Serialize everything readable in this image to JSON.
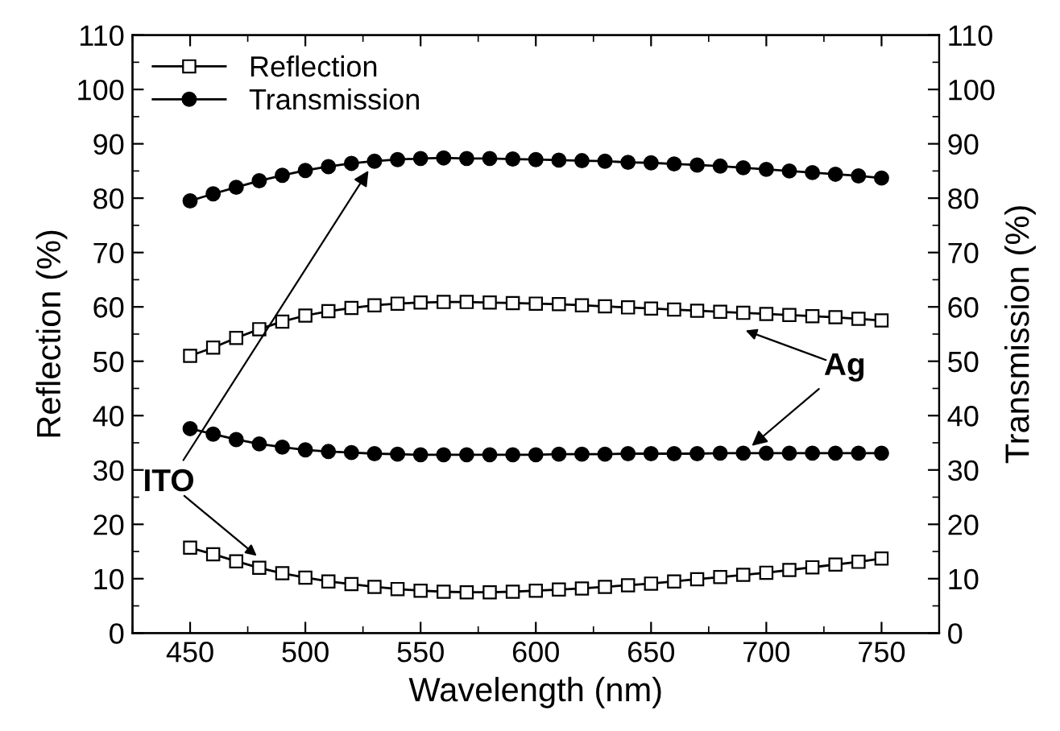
{
  "chart_data": {
    "type": "line",
    "xlabel": "Wavelength (nm)",
    "ylabel": "Reflection (%)",
    "y2label": "Transmission (%)",
    "x": [
      450,
      460,
      470,
      480,
      490,
      500,
      510,
      520,
      530,
      540,
      550,
      560,
      570,
      580,
      590,
      600,
      610,
      620,
      630,
      640,
      650,
      660,
      670,
      680,
      690,
      700,
      710,
      720,
      730,
      740,
      750
    ],
    "series": [
      {
        "name": "Reflection",
        "color": "#000000",
        "marker": "square",
        "values": [
          51,
          52.5,
          54.3,
          55.9,
          57.3,
          58.4,
          59.2,
          59.8,
          60.3,
          60.6,
          60.8,
          60.9,
          60.9,
          60.8,
          60.7,
          60.6,
          60.5,
          60.3,
          60.1,
          59.9,
          59.7,
          59.5,
          59.3,
          59.1,
          58.9,
          58.7,
          58.5,
          58.3,
          58.1,
          57.8,
          57.5
        ]
      },
      {
        "color": "#000000",
        "marker": "square",
        "values": [
          15.7,
          14.5,
          13.2,
          12.0,
          11.0,
          10.2,
          9.5,
          9.0,
          8.5,
          8.1,
          7.8,
          7.6,
          7.5,
          7.5,
          7.6,
          7.8,
          8.0,
          8.2,
          8.5,
          8.8,
          9.1,
          9.5,
          9.9,
          10.3,
          10.7,
          11.1,
          11.6,
          12.1,
          12.6,
          13.1,
          13.7
        ]
      },
      {
        "name": "Transmission",
        "color": "#000000",
        "marker": "circle",
        "values": [
          79.5,
          80.8,
          82.0,
          83.2,
          84.2,
          85.1,
          85.8,
          86.4,
          86.8,
          87.1,
          87.3,
          87.4,
          87.3,
          87.3,
          87.2,
          87.1,
          87.0,
          86.9,
          86.8,
          86.6,
          86.5,
          86.3,
          86.1,
          85.9,
          85.6,
          85.3,
          85.0,
          84.7,
          84.4,
          84.1,
          83.7
        ]
      },
      {
        "color": "#000000",
        "marker": "circle",
        "values": [
          37.6,
          36.6,
          35.6,
          34.8,
          34.2,
          33.7,
          33.4,
          33.2,
          33.0,
          32.9,
          32.8,
          32.8,
          32.8,
          32.8,
          32.8,
          32.8,
          32.9,
          32.9,
          32.9,
          33.0,
          33.0,
          33.0,
          33.0,
          33.1,
          33.1,
          33.1,
          33.1,
          33.1,
          33.1,
          33.1,
          33.1
        ]
      }
    ],
    "xlim": [
      425,
      775
    ],
    "xticks": [
      450,
      500,
      550,
      600,
      650,
      700,
      750
    ],
    "ylim": [
      0,
      110
    ],
    "yticks": [
      0,
      10,
      20,
      30,
      40,
      50,
      60,
      70,
      80,
      90,
      100,
      110
    ],
    "y2lim": [
      0,
      110
    ],
    "y2ticks": [
      0,
      10,
      20,
      30,
      40,
      50,
      60,
      70,
      80,
      90,
      100,
      110
    ],
    "grid": false,
    "legend": "top left",
    "line_style": "solid",
    "annotations": [
      {
        "text": "ITO",
        "x": 530,
        "y": 86.8
      },
      {
        "text": "Ag",
        "x": 690,
        "y": 33.1
      }
    ]
  }
}
